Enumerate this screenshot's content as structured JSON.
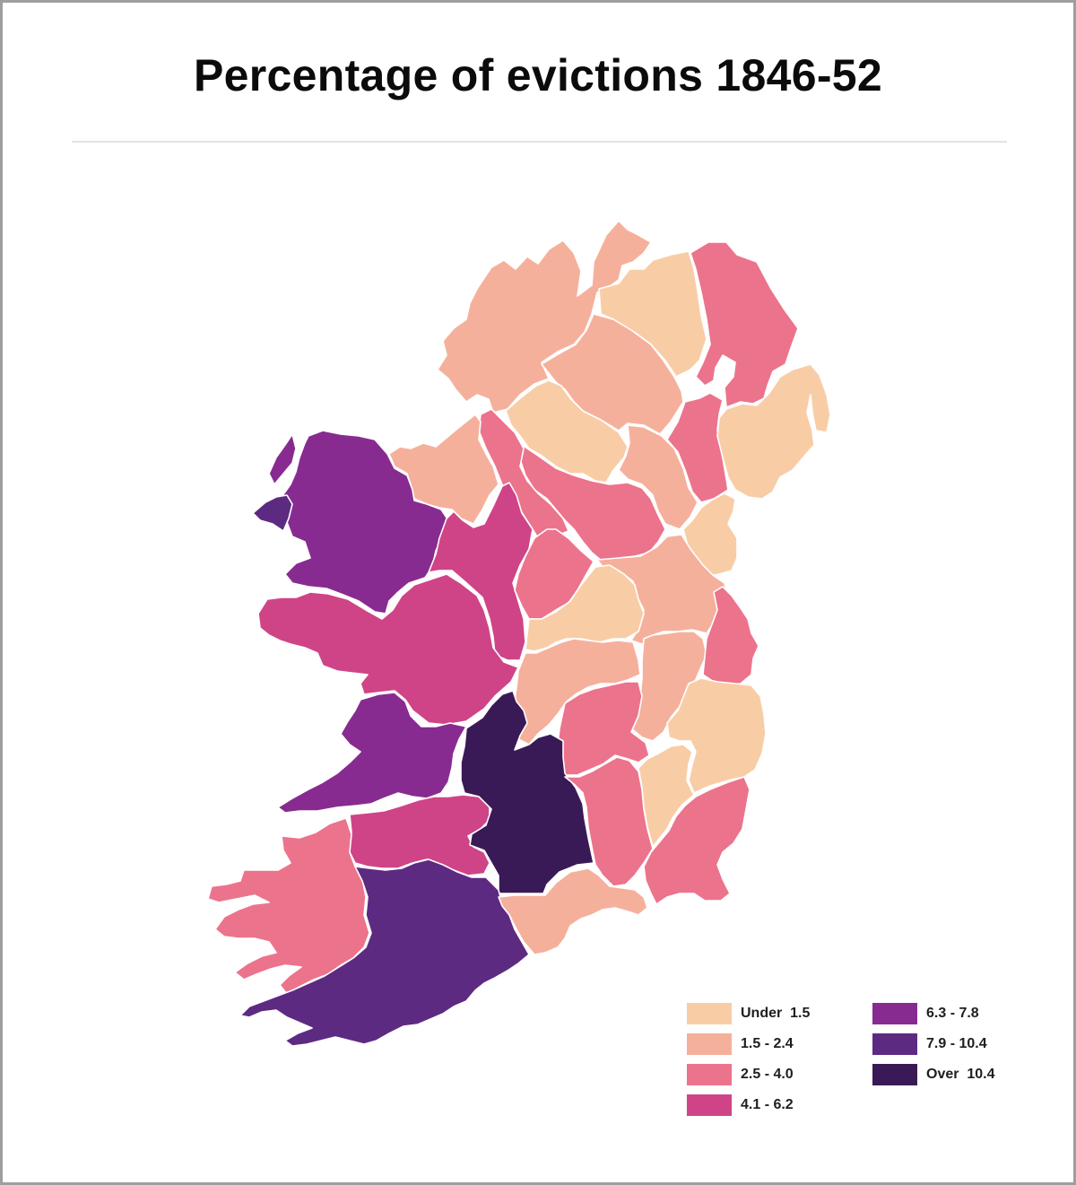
{
  "title": "Percentage of evictions 1846-52",
  "colors": {
    "c1": "#f8cda6",
    "c2": "#f5b09c",
    "c3": "#ec738c",
    "c4": "#cf4487",
    "c5": "#882b90",
    "c6": "#5d2a82",
    "c7": "#3a1a56"
  },
  "legend": [
    {
      "label": "Under  1.5",
      "class": "c1"
    },
    {
      "label": "1.5 - 2.4",
      "class": "c2"
    },
    {
      "label": "2.5 - 4.0",
      "class": "c3"
    },
    {
      "label": "4.1 - 6.2",
      "class": "c4"
    },
    {
      "label": "6.3 - 7.8",
      "class": "c5"
    },
    {
      "label": "7.9 - 10.4",
      "class": "c6"
    },
    {
      "label": "Over  10.4",
      "class": "c7"
    }
  ],
  "regions": [
    {
      "name": "Donegal",
      "class": "c2"
    },
    {
      "name": "Derry",
      "class": "c1"
    },
    {
      "name": "Antrim",
      "class": "c3"
    },
    {
      "name": "Tyrone",
      "class": "c2"
    },
    {
      "name": "Fermanagh",
      "class": "c1"
    },
    {
      "name": "Armagh",
      "class": "c3"
    },
    {
      "name": "Down",
      "class": "c1"
    },
    {
      "name": "Monaghan",
      "class": "c2"
    },
    {
      "name": "Cavan",
      "class": "c3"
    },
    {
      "name": "Leitrim",
      "class": "c3"
    },
    {
      "name": "Sligo",
      "class": "c2"
    },
    {
      "name": "Mayo",
      "class": "c5"
    },
    {
      "name": "Roscommon",
      "class": "c4"
    },
    {
      "name": "Longford",
      "class": "c3"
    },
    {
      "name": "Louth",
      "class": "c1"
    },
    {
      "name": "Meath",
      "class": "c2"
    },
    {
      "name": "Westmeath",
      "class": "c1"
    },
    {
      "name": "Galway",
      "class": "c4"
    },
    {
      "name": "Offaly",
      "class": "c2"
    },
    {
      "name": "Kildare",
      "class": "c2"
    },
    {
      "name": "Dublin",
      "class": "c3"
    },
    {
      "name": "Wicklow",
      "class": "c1"
    },
    {
      "name": "Laois",
      "class": "c3"
    },
    {
      "name": "Clare",
      "class": "c5"
    },
    {
      "name": "Limerick",
      "class": "c4"
    },
    {
      "name": "Tipperary",
      "class": "c7"
    },
    {
      "name": "Kilkenny",
      "class": "c3"
    },
    {
      "name": "Carlow",
      "class": "c1"
    },
    {
      "name": "Wexford",
      "class": "c3"
    },
    {
      "name": "Kerry",
      "class": "c3"
    },
    {
      "name": "Cork",
      "class": "c6"
    },
    {
      "name": "Waterford",
      "class": "c2"
    },
    {
      "name": "Inishmore",
      "class": "c6"
    }
  ]
}
